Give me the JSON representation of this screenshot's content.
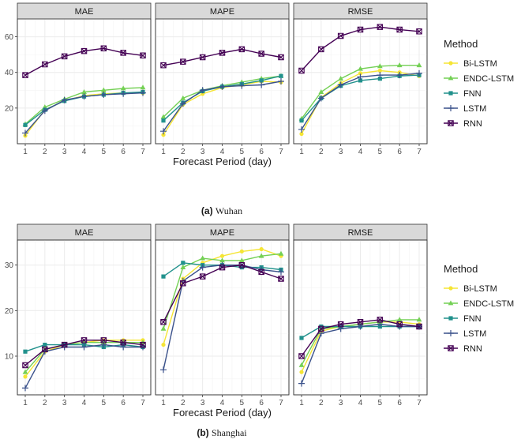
{
  "chart_data": [
    {
      "type": "line",
      "caption_letter": "(a)",
      "caption_city": "Wuhan",
      "xlabel": "Forecast Period (day)",
      "x": [
        1,
        2,
        3,
        4,
        5,
        6,
        7
      ],
      "ylim": [
        0,
        70
      ],
      "yticks": [
        20,
        40,
        60
      ],
      "facets": [
        {
          "title": "MAE",
          "series": [
            {
              "name": "Bi-LSTM",
              "values": [
                4.5,
                19.0,
                24.0,
                27.0,
                28.0,
                28.5,
                28.5
              ]
            },
            {
              "name": "ENDC-LSTM",
              "values": [
                11.0,
                20.5,
                25.0,
                29.0,
                30.0,
                31.0,
                31.5
              ]
            },
            {
              "name": "FNN",
              "values": [
                10.5,
                19.0,
                24.0,
                26.5,
                27.5,
                28.5,
                29.0
              ]
            },
            {
              "name": "LSTM",
              "values": [
                6.0,
                18.5,
                24.5,
                26.5,
                27.5,
                28.0,
                28.5
              ]
            },
            {
              "name": "RNN",
              "values": [
                38.5,
                44.5,
                49.0,
                52.0,
                53.5,
                51.0,
                49.5
              ]
            }
          ]
        },
        {
          "title": "MAPE",
          "series": [
            {
              "name": "Bi-LSTM",
              "values": [
                5.0,
                22.0,
                28.0,
                31.5,
                33.0,
                35.0,
                34.5
              ]
            },
            {
              "name": "ENDC-LSTM",
              "values": [
                15.0,
                25.5,
                30.0,
                32.5,
                34.5,
                36.5,
                38.0
              ]
            },
            {
              "name": "FNN",
              "values": [
                13.0,
                23.0,
                29.5,
                32.0,
                33.5,
                35.5,
                38.0
              ]
            },
            {
              "name": "LSTM",
              "values": [
                7.0,
                22.5,
                30.0,
                32.0,
                32.5,
                33.0,
                35.0
              ]
            },
            {
              "name": "RNN",
              "values": [
                44.0,
                46.0,
                48.5,
                51.0,
                53.0,
                50.5,
                48.5
              ]
            }
          ]
        },
        {
          "title": "RMSE",
          "series": [
            {
              "name": "Bi-LSTM",
              "values": [
                5.5,
                26.0,
                34.0,
                39.5,
                41.0,
                40.0,
                38.0
              ]
            },
            {
              "name": "ENDC-LSTM",
              "values": [
                14.0,
                29.0,
                36.5,
                42.0,
                43.5,
                44.0,
                44.0
              ]
            },
            {
              "name": "FNN",
              "values": [
                13.0,
                25.5,
                32.5,
                35.5,
                36.5,
                38.0,
                38.5
              ]
            },
            {
              "name": "LSTM",
              "values": [
                8.0,
                25.5,
                33.0,
                37.5,
                38.5,
                38.5,
                39.5
              ]
            },
            {
              "name": "RNN",
              "values": [
                41.0,
                53.0,
                60.5,
                64.0,
                65.5,
                64.0,
                63.0
              ]
            }
          ]
        }
      ]
    },
    {
      "type": "line",
      "caption_letter": "(b)",
      "caption_city": "Shanghai",
      "xlabel": "Forecast Period (day)",
      "x": [
        1,
        2,
        3,
        4,
        5,
        6,
        7
      ],
      "ylim": [
        1.5,
        35.5
      ],
      "yticks": [
        10,
        20,
        30
      ],
      "facets": [
        {
          "title": "MAE",
          "series": [
            {
              "name": "Bi-LSTM",
              "values": [
                5.5,
                11.0,
                12.5,
                13.0,
                13.5,
                13.5,
                13.5
              ]
            },
            {
              "name": "ENDC-LSTM",
              "values": [
                6.5,
                11.5,
                12.5,
                13.0,
                13.0,
                13.0,
                13.0
              ]
            },
            {
              "name": "FNN",
              "values": [
                11.0,
                12.5,
                12.5,
                12.5,
                12.0,
                12.5,
                12.0
              ]
            },
            {
              "name": "LSTM",
              "values": [
                3.0,
                11.0,
                12.0,
                12.0,
                12.5,
                12.0,
                12.0
              ]
            },
            {
              "name": "RNN",
              "values": [
                8.0,
                11.5,
                12.5,
                13.5,
                13.5,
                13.0,
                12.5
              ]
            }
          ]
        },
        {
          "title": "MAPE",
          "series": [
            {
              "name": "Bi-LSTM",
              "values": [
                12.5,
                27.0,
                30.5,
                32.0,
                33.0,
                33.5,
                32.0
              ]
            },
            {
              "name": "ENDC-LSTM",
              "values": [
                16.0,
                29.5,
                31.5,
                31.0,
                31.0,
                32.0,
                32.5
              ]
            },
            {
              "name": "FNN",
              "values": [
                27.5,
                30.5,
                30.0,
                30.0,
                29.5,
                29.5,
                29.0
              ]
            },
            {
              "name": "LSTM",
              "values": [
                7.0,
                26.5,
                29.5,
                30.0,
                30.0,
                29.0,
                28.5
              ]
            },
            {
              "name": "RNN",
              "values": [
                17.5,
                26.0,
                27.5,
                29.5,
                30.0,
                28.5,
                27.0
              ]
            }
          ]
        },
        {
          "title": "RMSE",
          "series": [
            {
              "name": "Bi-LSTM",
              "values": [
                6.5,
                15.5,
                16.5,
                17.0,
                17.5,
                17.5,
                17.0
              ]
            },
            {
              "name": "ENDC-LSTM",
              "values": [
                8.0,
                16.0,
                16.5,
                17.0,
                17.5,
                18.0,
                18.0
              ]
            },
            {
              "name": "FNN",
              "values": [
                14.0,
                16.5,
                16.5,
                16.5,
                16.5,
                16.5,
                16.5
              ]
            },
            {
              "name": "LSTM",
              "values": [
                4.0,
                15.0,
                16.0,
                16.5,
                17.0,
                16.5,
                16.5
              ]
            },
            {
              "name": "RNN",
              "values": [
                10.0,
                16.0,
                17.0,
                17.5,
                18.0,
                17.0,
                16.5
              ]
            }
          ]
        }
      ]
    }
  ],
  "legend": {
    "title": "Method",
    "items": [
      "Bi-LSTM",
      "ENDC-LSTM",
      "FNN",
      "LSTM",
      "RNN"
    ]
  },
  "series_styles": {
    "Bi-LSTM": {
      "color": "#f5e535",
      "marker": "circle"
    },
    "ENDC-LSTM": {
      "color": "#74d055",
      "marker": "triangle"
    },
    "FNN": {
      "color": "#21918c",
      "marker": "square"
    },
    "LSTM": {
      "color": "#3b528b",
      "marker": "plus"
    },
    "RNN": {
      "color": "#440154",
      "marker": "square-x"
    }
  }
}
